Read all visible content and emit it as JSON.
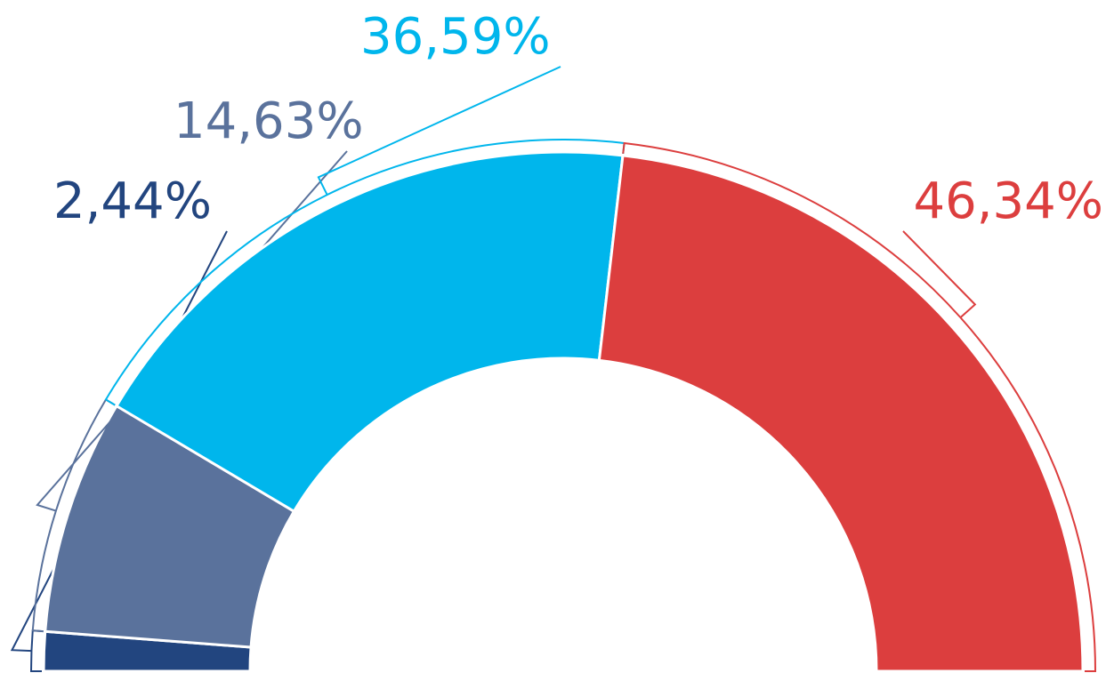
{
  "chart_data": {
    "type": "half-donut",
    "categories": [
      null,
      null,
      null,
      null
    ],
    "values": [
      2.44,
      14.63,
      36.59,
      46.34
    ],
    "value_labels": [
      "2,44%",
      "14,63%",
      "36,59%",
      "46,34%"
    ],
    "colors": [
      "#22457f",
      "#5a729c",
      "#00b6ec",
      "#dc3e3e"
    ]
  }
}
